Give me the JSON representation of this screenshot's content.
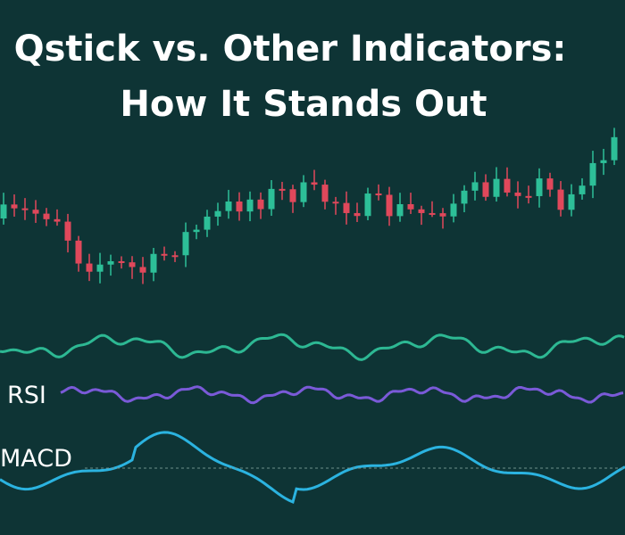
{
  "header": {
    "title_line_1": "Qstick vs. Other Indicators:",
    "title_line_2": "How It Stands Out"
  },
  "panels": {
    "rsi_label": "RSI",
    "macd_label": "MACD"
  }
}
